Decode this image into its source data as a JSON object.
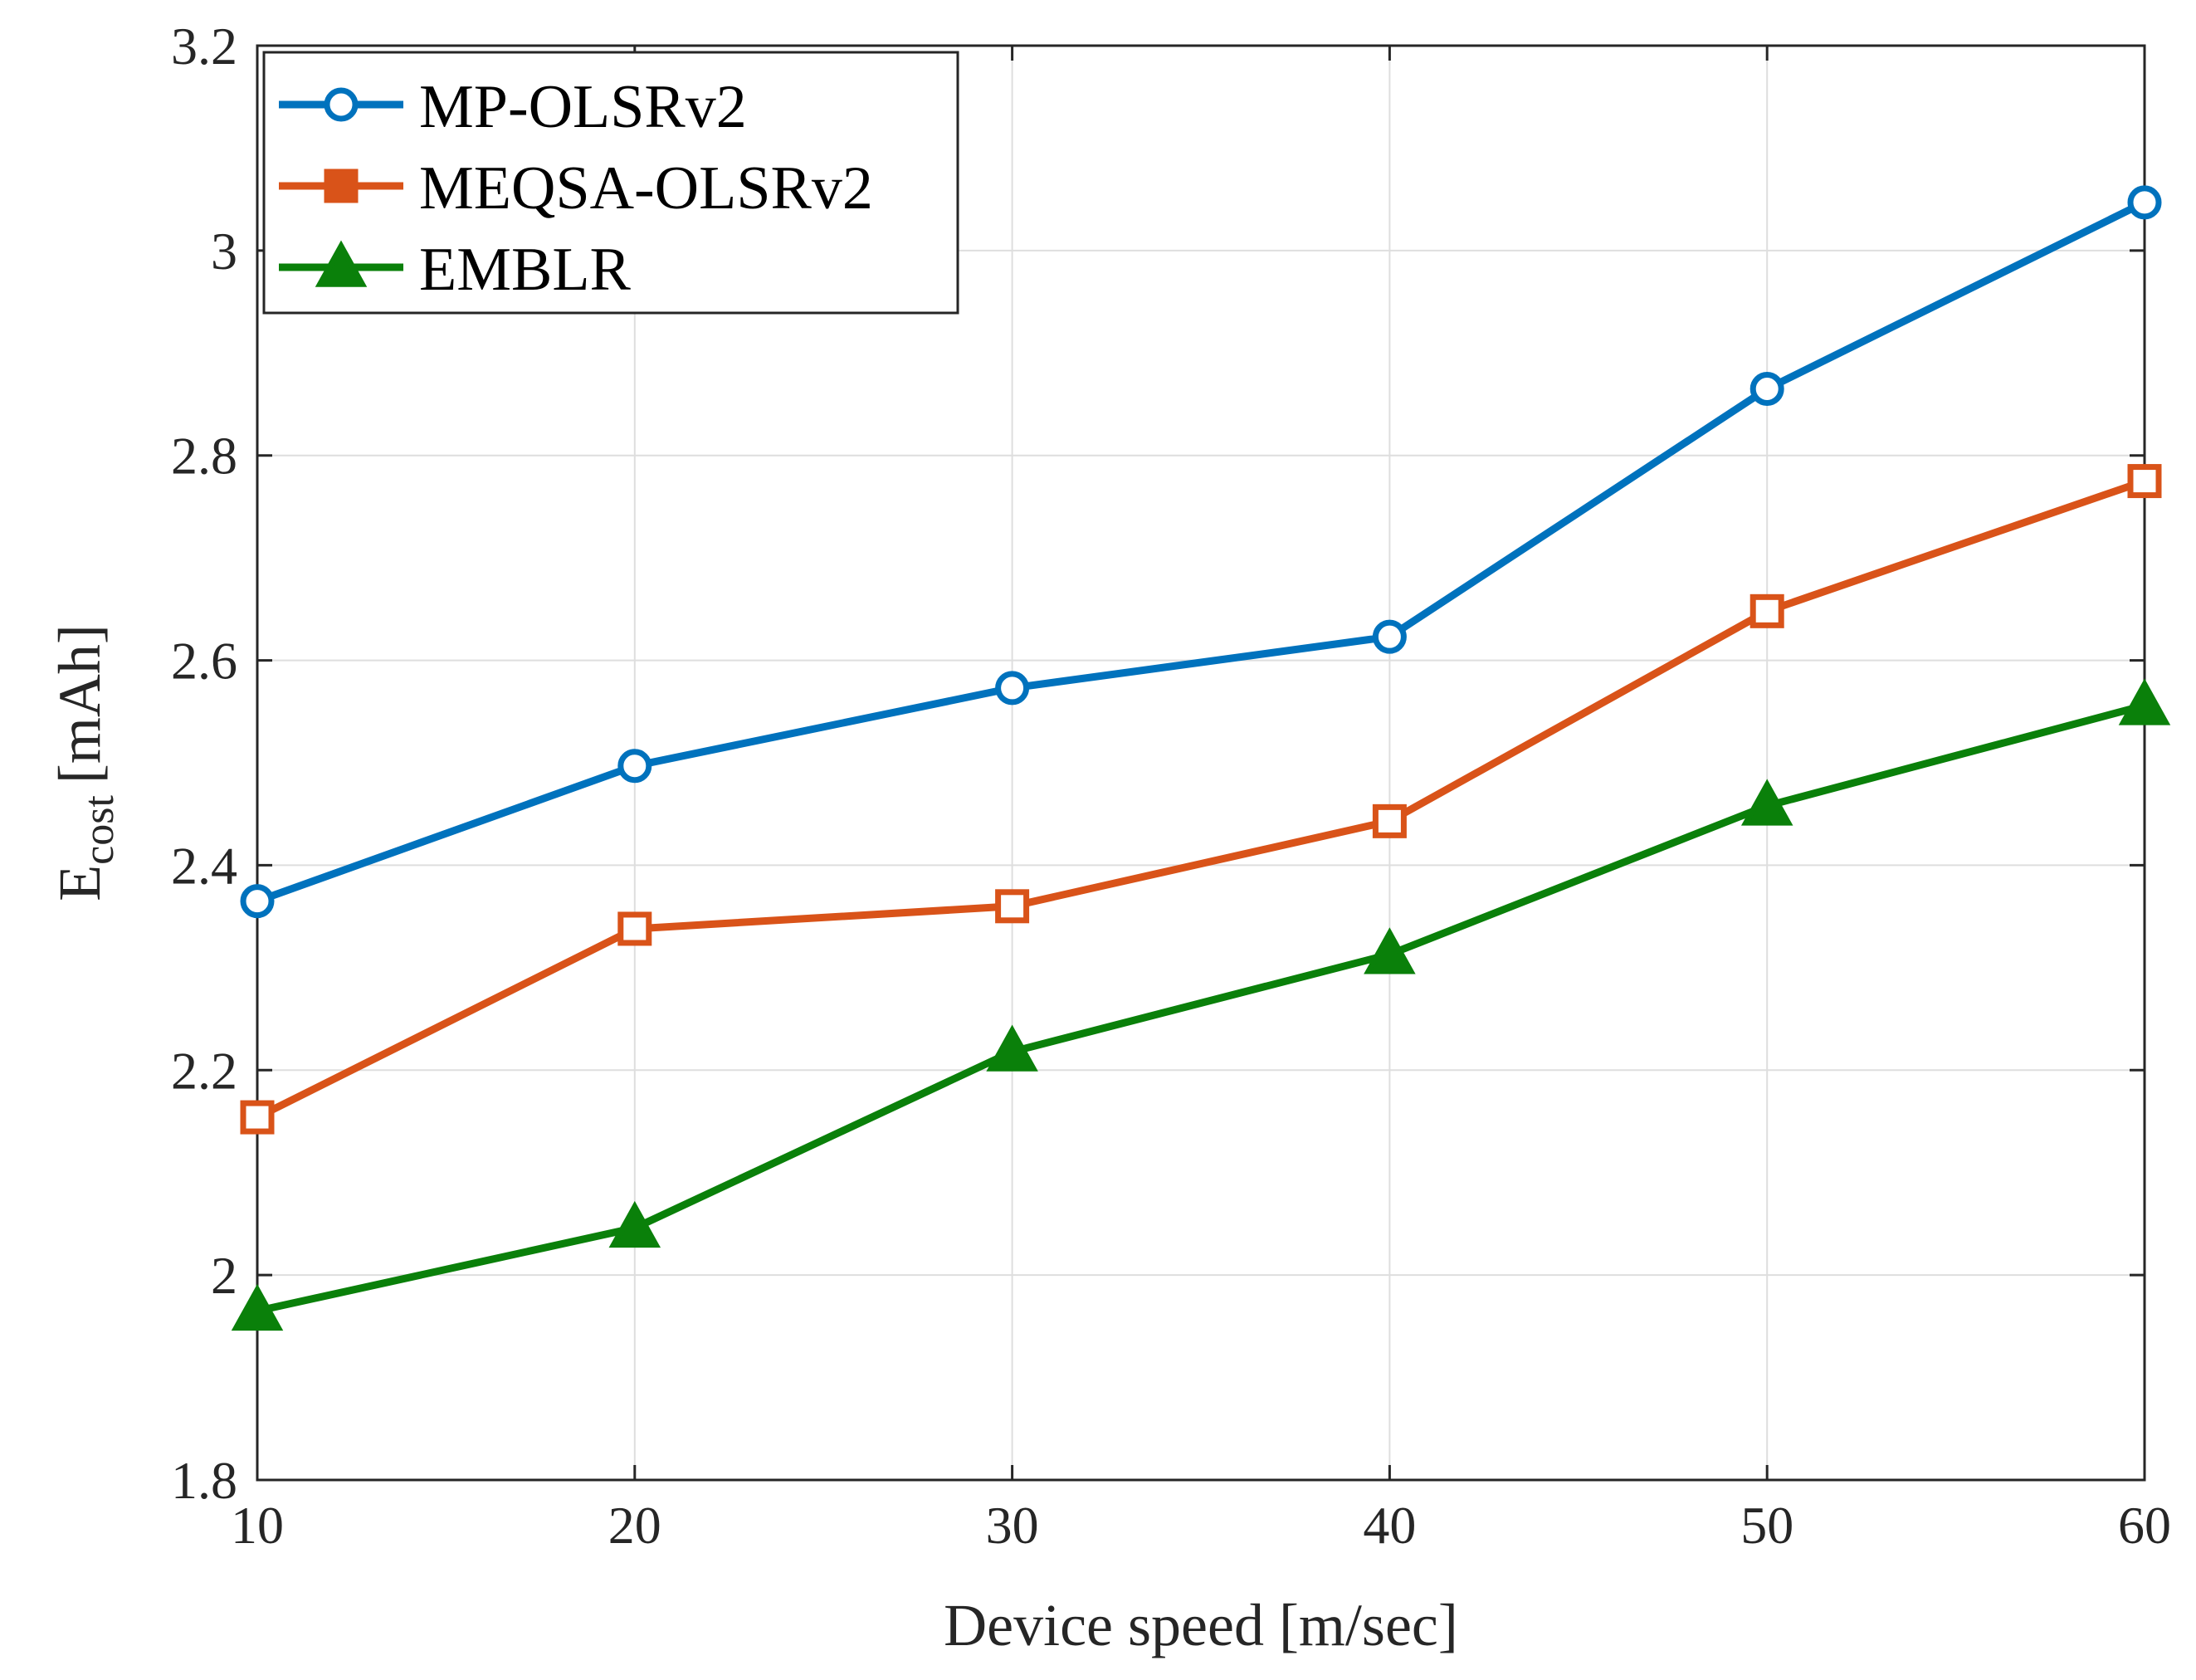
{
  "chart_data": {
    "type": "line",
    "title": "",
    "xlabel": "Device speed [m/sec]",
    "ylabel_main": "E",
    "ylabel_sub": "cost",
    "ylabel_unit": "[mAh]",
    "x": [
      10,
      20,
      30,
      40,
      50,
      60
    ],
    "xticks": [
      "10",
      "20",
      "30",
      "40",
      "50",
      "60"
    ],
    "yticks": [
      "1.8",
      "2",
      "2.2",
      "2.4",
      "2.6",
      "2.8",
      "3",
      "3.2"
    ],
    "ytick_values": [
      1.8,
      2.0,
      2.2,
      2.4,
      2.6,
      2.8,
      3.0,
      3.2
    ],
    "xlim": [
      10,
      60
    ],
    "ylim": [
      1.8,
      3.2
    ],
    "grid": true,
    "legend_position": "top-left",
    "series": [
      {
        "name": "MP-OLSRv2",
        "marker": "circle",
        "color": "#0072BD",
        "values": [
          2.365,
          2.497,
          2.573,
          2.623,
          2.865,
          3.047
        ]
      },
      {
        "name": "MEQSA-OLSRv2",
        "marker": "square",
        "color": "#D95319",
        "values": [
          2.154,
          2.338,
          2.36,
          2.443,
          2.648,
          2.775
        ]
      },
      {
        "name": "EMBLR",
        "marker": "triangle",
        "color": "#0A800A",
        "values": [
          1.965,
          2.046,
          2.218,
          2.313,
          2.458,
          2.556
        ]
      }
    ]
  }
}
